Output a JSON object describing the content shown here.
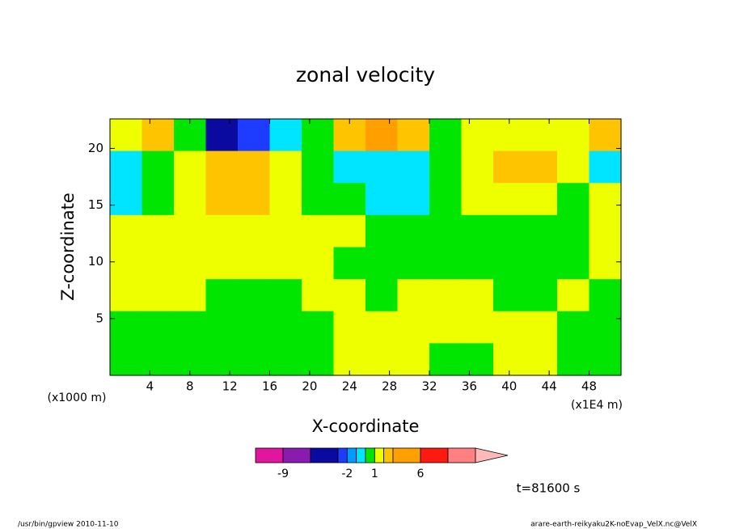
{
  "chart_data": {
    "type": "contour",
    "title": "zonal velocity",
    "x_label": "X-coordinate",
    "y_label": "Z-coordinate",
    "x_unit": "(x1000 m)",
    "x_unit_right": "(x1E4 m)",
    "time_label": "t=81600 s",
    "footer_left": "/usr/bin/gpview  2010-11-10",
    "footer_right": "arare-earth-reikyaku2K-noEvap_VelX.nc@VelX",
    "xlim": [
      0,
      51.2
    ],
    "ylim": [
      0,
      22.6
    ],
    "xticks": [
      4,
      8,
      12,
      16,
      20,
      24,
      28,
      32,
      36,
      40,
      44,
      48
    ],
    "yticks": [
      5,
      10,
      15,
      20
    ],
    "levels": [
      -12,
      -9,
      -6,
      -3,
      -2,
      -1,
      0,
      1,
      2,
      3,
      6,
      9,
      12
    ],
    "colors": [
      "#e0169e",
      "#8a1bb0",
      "#0a0aa0",
      "#1e3cff",
      "#009bff",
      "#00e5ff",
      "#00e600",
      "#eeff00",
      "#ffc400",
      "#ffa000",
      "#ff1a10",
      "#ff8080",
      "#ffb8b8"
    ],
    "colorbar_ticks": [
      -9,
      -2,
      1,
      6
    ],
    "field": [
      [
        1.5,
        2.5,
        0.5,
        -4,
        -2.5,
        -0.5,
        0.5,
        2.5,
        3.5,
        2.5,
        0.5,
        1.5,
        1.5,
        1.5,
        1.5,
        2.5
      ],
      [
        -0.5,
        0.5,
        1.5,
        2.5,
        2.5,
        1.5,
        0.5,
        -0.5,
        -0.5,
        -0.5,
        0.5,
        1.5,
        2.5,
        2.5,
        1.5,
        -0.5
      ],
      [
        -0.5,
        0.5,
        1.5,
        2.5,
        2.5,
        1.5,
        0.5,
        0.5,
        -0.5,
        -0.5,
        0.5,
        1.5,
        1.5,
        1.5,
        0.5,
        1.5
      ],
      [
        1.5,
        1.5,
        1.5,
        1.5,
        1.5,
        1.5,
        1.5,
        1.5,
        0.5,
        0.5,
        0.5,
        0.5,
        0.5,
        0.5,
        0.5,
        1.5
      ],
      [
        1.5,
        1.5,
        1.5,
        1.5,
        1.5,
        1.5,
        1.5,
        0.5,
        0.5,
        0.5,
        0.5,
        0.5,
        0.5,
        0.5,
        0.5,
        1.5
      ],
      [
        1.5,
        1.5,
        1.5,
        0.5,
        0.5,
        0.5,
        1.5,
        1.5,
        0.5,
        1.5,
        1.5,
        1.5,
        0.5,
        0.5,
        1.5,
        0.5
      ],
      [
        0.5,
        0.5,
        0.5,
        0.5,
        0.5,
        0.5,
        0.5,
        1.5,
        1.5,
        1.5,
        1.5,
        1.5,
        1.5,
        1.5,
        0.5,
        0.5
      ],
      [
        0.5,
        0.5,
        0.5,
        0.5,
        0.5,
        0.5,
        0.5,
        1.5,
        1.5,
        1.5,
        0.5,
        0.5,
        1.5,
        1.5,
        0.5,
        0.5
      ]
    ]
  }
}
